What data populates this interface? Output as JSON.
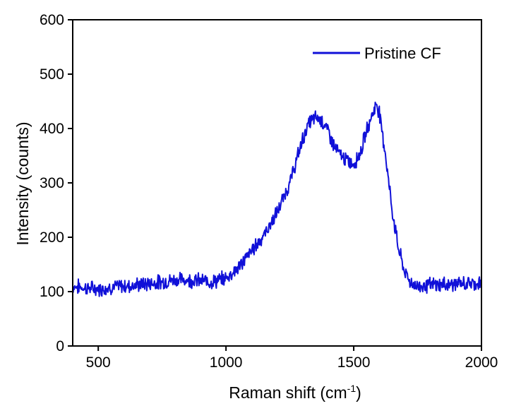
{
  "chart_data": {
    "type": "line",
    "xlabel": "Raman shift (cm",
    "xlabel_sup": "-1",
    "xlabel_suffix": ")",
    "ylabel": "Intensity (counts)",
    "xlim": [
      400,
      2000
    ],
    "ylim": [
      0,
      600
    ],
    "xticks": [
      500,
      1000,
      1500,
      2000
    ],
    "yticks": [
      0,
      100,
      200,
      300,
      400,
      500,
      600
    ],
    "grid": false,
    "legend_position": "top-right",
    "series": [
      {
        "name": "Pristine CF",
        "color": "#1010d8",
        "x": [
          400,
          450,
          500,
          550,
          600,
          650,
          700,
          750,
          800,
          850,
          900,
          950,
          1000,
          1050,
          1100,
          1150,
          1200,
          1250,
          1300,
          1325,
          1350,
          1375,
          1400,
          1425,
          1450,
          1475,
          1500,
          1525,
          1550,
          1575,
          1590,
          1600,
          1625,
          1650,
          1675,
          1700,
          1725,
          1750,
          1800,
          1850,
          1900,
          1950,
          2000
        ],
        "values": [
          110,
          107,
          105,
          108,
          110,
          112,
          115,
          118,
          122,
          122,
          120,
          118,
          125,
          145,
          175,
          205,
          245,
          300,
          380,
          410,
          420,
          415,
          395,
          365,
          350,
          340,
          335,
          355,
          395,
          430,
          445,
          430,
          350,
          250,
          180,
          135,
          115,
          110,
          112,
          113,
          114,
          115,
          116
        ]
      }
    ]
  }
}
